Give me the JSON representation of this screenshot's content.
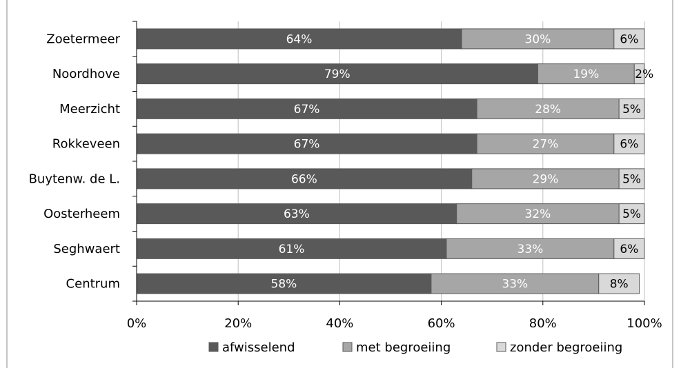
{
  "chart_data": {
    "type": "bar",
    "orientation": "horizontal",
    "stacked": true,
    "title": "",
    "xlabel": "",
    "ylabel": "",
    "xlim": [
      0,
      100
    ],
    "x_ticks": [
      "0%",
      "20%",
      "40%",
      "60%",
      "80%",
      "100%"
    ],
    "grid": true,
    "legend_position": "bottom",
    "categories": [
      "Zoetermeer",
      "Noordhove",
      "Meerzicht",
      "Rokkeveen",
      "Buytenw. de L.",
      "Oosterheem",
      "Seghwaert",
      "Centrum"
    ],
    "series": [
      {
        "name": "afwisselend",
        "color": "#595959",
        "label_color": "#ffffff",
        "values": [
          64,
          79,
          67,
          67,
          66,
          63,
          61,
          58
        ],
        "labels": [
          "64%",
          "79%",
          "67%",
          "67%",
          "66%",
          "63%",
          "61%",
          "58%"
        ]
      },
      {
        "name": "met begroeiing",
        "color": "#a6a6a6",
        "label_color": "#ffffff",
        "values": [
          30,
          19,
          28,
          27,
          29,
          32,
          33,
          33
        ],
        "labels": [
          "30%",
          "19%",
          "28%",
          "27%",
          "29%",
          "32%",
          "33%",
          "33%"
        ]
      },
      {
        "name": "zonder begroeiing",
        "color": "#d9d9d9",
        "label_color": "#000000",
        "values": [
          6,
          2,
          5,
          6,
          5,
          5,
          6,
          8
        ],
        "labels": [
          "6%",
          "2%",
          "5%",
          "6%",
          "5%",
          "5%",
          "6%",
          "8%"
        ]
      }
    ]
  }
}
